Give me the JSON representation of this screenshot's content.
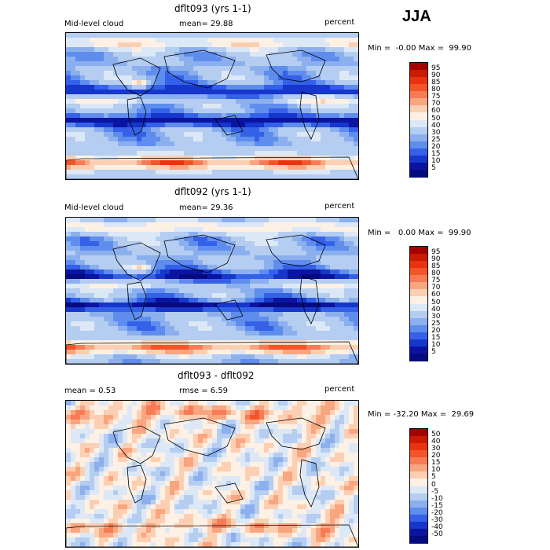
{
  "season": "JJA",
  "panels": [
    {
      "title": "dflt093 (yrs 1-1)",
      "left_label": "Mid-level cloud",
      "center_label": "mean=  29.88",
      "right_label": "percent",
      "minmax": "Min =  -0.00 Max =  99.90",
      "levels": [
        "95",
        "90",
        "85",
        "80",
        "75",
        "70",
        "60",
        "50",
        "40",
        "30",
        "25",
        "20",
        "15",
        "10",
        "5"
      ],
      "colors": [
        "#a50000",
        "#cc1a00",
        "#e8330e",
        "#f2552a",
        "#f77c55",
        "#f9a580",
        "#fccfb3",
        "#fdf0e4",
        "#dde8f7",
        "#b4cdf0",
        "#8cb0ee",
        "#5f8ded",
        "#3461e8",
        "#1736cc",
        "#0a14a0",
        "#050a80"
      ],
      "map_values": "positive"
    },
    {
      "title": "dflt092 (yrs 1-1)",
      "left_label": "Mid-level cloud",
      "center_label": "mean=  29.36",
      "right_label": "percent",
      "minmax": "Min =   0.00 Max =  99.90",
      "levels": [
        "95",
        "90",
        "85",
        "80",
        "75",
        "70",
        "60",
        "50",
        "40",
        "30",
        "25",
        "20",
        "15",
        "10",
        "5"
      ],
      "colors": [
        "#a50000",
        "#cc1a00",
        "#e8330e",
        "#f2552a",
        "#f77c55",
        "#f9a580",
        "#fccfb3",
        "#fdf0e4",
        "#dde8f7",
        "#b4cdf0",
        "#8cb0ee",
        "#5f8ded",
        "#3461e8",
        "#1736cc",
        "#0a14a0",
        "#050a80"
      ],
      "map_values": "positive"
    },
    {
      "title": "dflt093 - dflt092",
      "left_label": "mean =    0.53",
      "center_label": "rmse =    6.59",
      "right_label": "percent",
      "minmax": "Min = -32.20 Max =  29.69",
      "levels": [
        "50",
        "40",
        "30",
        "20",
        "15",
        "10",
        "5",
        "0",
        "-5",
        "-10",
        "-15",
        "-20",
        "-30",
        "-40",
        "-50"
      ],
      "colors": [
        "#a50000",
        "#cc1a00",
        "#e8330e",
        "#f2552a",
        "#f77c55",
        "#f9a580",
        "#fccfb3",
        "#fdf0e4",
        "#dde8f7",
        "#b4cdf0",
        "#8cb0ee",
        "#5f8ded",
        "#3461e8",
        "#1736cc",
        "#0a14a0",
        "#050a80"
      ],
      "map_values": "difference"
    }
  ]
}
